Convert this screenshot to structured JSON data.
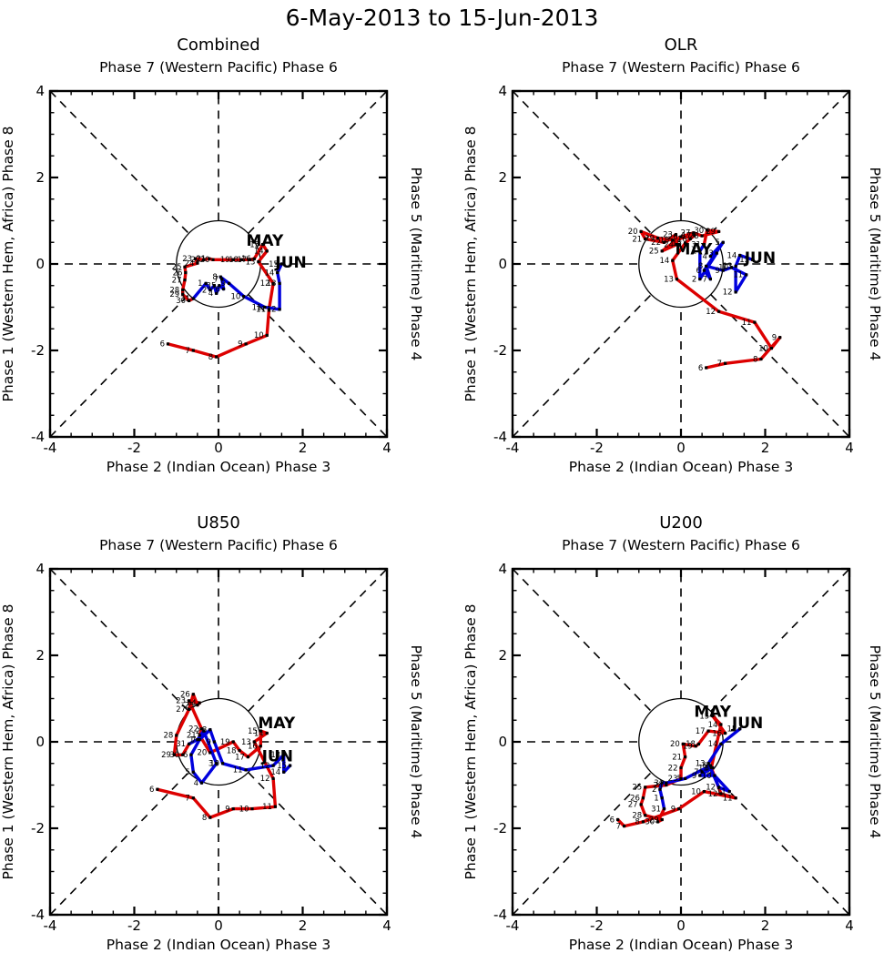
{
  "figure_title": "6-May-2013 to 15-Jun-2013",
  "colors": {
    "may": "#dd0000",
    "jun": "#0000dd",
    "axis": "#000000"
  },
  "axis": {
    "min": -4,
    "max": 4,
    "major_ticks": [
      -4,
      -2,
      0,
      2,
      4
    ],
    "tick_labels": [
      "-4",
      "-2",
      "0",
      "2",
      "4"
    ],
    "minor_step": 0.5,
    "unit_circle_radius": 1,
    "top_label": "Phase 7 (Western Pacific) Phase 6",
    "bottom_label": "Phase 2 (Indian Ocean) Phase 3",
    "left_label": "Phase 1 (Western Hem, Africa) Phase 8",
    "right_label": "Phase 5 (Maritime) Phase 4"
  },
  "chart_data": [
    {
      "type": "line",
      "title": "Combined",
      "xlim": [
        -4,
        4
      ],
      "ylim": [
        -4,
        4
      ],
      "grid": false,
      "series": [
        {
          "name": "MAY",
          "color": "#dd0000",
          "label_pos": [
            1.1,
            0.42
          ],
          "points": [
            [
              6,
              -1.2,
              -1.85
            ],
            [
              7,
              -0.6,
              -2.0
            ],
            [
              8,
              -0.05,
              -2.15
            ],
            [
              9,
              0.65,
              -1.85
            ],
            [
              10,
              1.15,
              -1.65
            ],
            [
              11,
              1.2,
              -1.05
            ],
            [
              12,
              1.3,
              -0.45
            ],
            [
              13,
              0.95,
              0.05
            ],
            [
              14,
              1.15,
              0.3
            ],
            [
              15,
              1.05,
              0.45
            ],
            [
              16,
              0.85,
              0.12
            ],
            [
              17,
              0.75,
              0.1
            ],
            [
              18,
              0.55,
              0.1
            ],
            [
              19,
              0.35,
              0.1
            ],
            [
              20,
              -0.13,
              0.1
            ],
            [
              21,
              -0.22,
              0.12
            ],
            [
              22,
              -0.35,
              0.1
            ],
            [
              23,
              -0.55,
              0.12
            ],
            [
              24,
              -0.5,
              0.02
            ],
            [
              25,
              -0.8,
              -0.07
            ],
            [
              26,
              -0.78,
              -0.2
            ],
            [
              27,
              -0.8,
              -0.37
            ],
            [
              28,
              -0.85,
              -0.6
            ],
            [
              29,
              -0.85,
              -0.7
            ],
            [
              30,
              -0.7,
              -0.85
            ],
            [
              31,
              -0.6,
              -0.8
            ]
          ]
        },
        {
          "name": "JUN",
          "color": "#0000dd",
          "label_pos": [
            1.72,
            -0.08
          ],
          "points": [
            [
              1,
              -0.3,
              -0.45
            ],
            [
              2,
              -0.2,
              -0.6
            ],
            [
              3,
              -0.1,
              -0.5
            ],
            [
              4,
              -0.05,
              -0.68
            ],
            [
              5,
              0.02,
              -0.5
            ],
            [
              6,
              0.12,
              -0.58
            ],
            [
              7,
              0.08,
              -0.35
            ],
            [
              8,
              0.05,
              -0.3
            ],
            [
              9,
              0.25,
              -0.45
            ],
            [
              10,
              0.6,
              -0.75
            ],
            [
              11,
              1.1,
              -1.0
            ],
            [
              12,
              1.45,
              -1.05
            ],
            [
              13,
              1.45,
              -0.45
            ],
            [
              14,
              1.4,
              -0.2
            ],
            [
              15,
              1.5,
              0.0
            ]
          ]
        }
      ]
    },
    {
      "type": "line",
      "title": "OLR",
      "xlim": [
        -4,
        4
      ],
      "ylim": [
        -4,
        4
      ],
      "grid": false,
      "series": [
        {
          "name": "MAY",
          "color": "#dd0000",
          "label_pos": [
            0.3,
            0.22
          ],
          "points": [
            [
              6,
              0.6,
              -2.4
            ],
            [
              7,
              1.05,
              -2.3
            ],
            [
              8,
              1.9,
              -2.2
            ],
            [
              9,
              2.35,
              -1.7
            ],
            [
              10,
              2.15,
              -1.95
            ],
            [
              11,
              1.75,
              -1.35
            ],
            [
              12,
              0.9,
              -1.1
            ],
            [
              13,
              -0.1,
              -0.35
            ],
            [
              14,
              -0.2,
              0.08
            ],
            [
              15,
              0.1,
              0.48
            ],
            [
              16,
              0.22,
              0.58
            ],
            [
              17,
              0.32,
              0.66
            ],
            [
              18,
              -0.2,
              0.55
            ],
            [
              19,
              -0.55,
              0.6
            ],
            [
              20,
              -0.95,
              0.75
            ],
            [
              21,
              -0.85,
              0.58
            ],
            [
              22,
              -0.4,
              0.5
            ],
            [
              23,
              -0.12,
              0.68
            ],
            [
              24,
              -0.1,
              0.45
            ],
            [
              25,
              -0.45,
              0.3
            ],
            [
              26,
              0.0,
              0.63
            ],
            [
              27,
              0.3,
              0.72
            ],
            [
              28,
              0.5,
              0.65
            ],
            [
              29,
              0.9,
              0.75
            ],
            [
              30,
              0.62,
              0.78
            ],
            [
              31,
              0.55,
              0.45
            ]
          ]
        },
        {
          "name": "JUN",
          "color": "#0000dd",
          "label_pos": [
            1.88,
            0.02
          ],
          "points": [
            [
              1,
              0.45,
              0.3
            ],
            [
              2,
              0.45,
              -0.35
            ],
            [
              3,
              0.85,
              0.25
            ],
            [
              4,
              0.7,
              0.18
            ],
            [
              5,
              1.0,
              0.5
            ],
            [
              6,
              0.55,
              -0.15
            ],
            [
              7,
              0.7,
              -0.35
            ],
            [
              8,
              0.6,
              -0.05
            ],
            [
              9,
              1.0,
              -0.15
            ],
            [
              10,
              1.2,
              -0.08
            ],
            [
              11,
              1.55,
              -0.25
            ],
            [
              12,
              1.3,
              -0.65
            ],
            [
              13,
              1.3,
              -0.05
            ],
            [
              14,
              1.4,
              0.2
            ],
            [
              15,
              1.7,
              0.1
            ]
          ]
        }
      ]
    },
    {
      "type": "line",
      "title": "U850",
      "xlim": [
        -4,
        4
      ],
      "ylim": [
        -4,
        4
      ],
      "grid": false,
      "series": [
        {
          "name": "MAY",
          "color": "#dd0000",
          "label_pos": [
            1.38,
            0.32
          ],
          "points": [
            [
              6,
              -1.45,
              -1.1
            ],
            [
              7,
              -0.6,
              -1.3
            ],
            [
              8,
              -0.2,
              -1.75
            ],
            [
              9,
              0.35,
              -1.55
            ],
            [
              10,
              0.8,
              -1.55
            ],
            [
              11,
              1.35,
              -1.5
            ],
            [
              12,
              1.3,
              -0.85
            ],
            [
              13,
              0.85,
              0.0
            ],
            [
              14,
              1.15,
              0.2
            ],
            [
              15,
              1.0,
              0.25
            ],
            [
              16,
              1.0,
              -0.1
            ],
            [
              17,
              0.7,
              -0.35
            ],
            [
              18,
              0.5,
              -0.2
            ],
            [
              19,
              0.35,
              0.0
            ],
            [
              20,
              -0.2,
              -0.25
            ],
            [
              21,
              -0.45,
              0.15
            ],
            [
              22,
              -0.4,
              0.3
            ],
            [
              23,
              -0.7,
              0.95
            ],
            [
              24,
              -0.45,
              0.9
            ],
            [
              25,
              -0.5,
              0.85
            ],
            [
              26,
              -0.6,
              1.1
            ],
            [
              27,
              -0.7,
              0.75
            ],
            [
              28,
              -1.0,
              0.15
            ],
            [
              29,
              -1.05,
              -0.3
            ],
            [
              30,
              -0.85,
              -0.3
            ],
            [
              31,
              -0.7,
              -0.05
            ]
          ]
        },
        {
          "name": "JUN",
          "color": "#0000dd",
          "label_pos": [
            1.4,
            -0.45
          ],
          "points": [
            [
              1,
              -0.5,
              0.05
            ],
            [
              2,
              -0.35,
              0.25
            ],
            [
              3,
              -0.05,
              -0.5
            ],
            [
              4,
              -0.4,
              -0.95
            ],
            [
              5,
              -0.6,
              -0.7
            ],
            [
              6,
              -0.65,
              -0.3
            ],
            [
              7,
              -0.45,
              0.05
            ],
            [
              8,
              -0.2,
              0.28
            ],
            [
              9,
              -0.1,
              0.0
            ],
            [
              10,
              0.1,
              -0.5
            ],
            [
              11,
              0.65,
              -0.65
            ],
            [
              12,
              1.3,
              -0.55
            ],
            [
              13,
              1.55,
              -0.3
            ],
            [
              14,
              1.55,
              -0.7
            ],
            [
              15,
              1.7,
              -0.55
            ]
          ]
        }
      ]
    },
    {
      "type": "line",
      "title": "U200",
      "xlim": [
        -4,
        4
      ],
      "ylim": [
        -4,
        4
      ],
      "grid": false,
      "series": [
        {
          "name": "MAY",
          "color": "#dd0000",
          "label_pos": [
            0.75,
            0.58
          ],
          "points": [
            [
              6,
              -1.5,
              -1.8
            ],
            [
              7,
              -1.35,
              -1.95
            ],
            [
              8,
              -0.9,
              -1.85
            ],
            [
              9,
              -0.05,
              -1.55
            ],
            [
              10,
              0.55,
              -1.15
            ],
            [
              11,
              1.3,
              -1.3
            ],
            [
              12,
              0.95,
              -1.2
            ],
            [
              13,
              0.72,
              -0.6
            ],
            [
              14,
              0.95,
              0.4
            ],
            [
              15,
              0.75,
              0.6
            ],
            [
              16,
              1.05,
              0.2
            ],
            [
              17,
              0.65,
              0.25
            ],
            [
              18,
              0.42,
              -0.05
            ],
            [
              19,
              0.35,
              -0.1
            ],
            [
              20,
              0.05,
              -0.05
            ],
            [
              21,
              0.1,
              -0.35
            ],
            [
              22,
              0.0,
              -0.6
            ],
            [
              23,
              0.0,
              -0.85
            ],
            [
              24,
              -0.35,
              -1.0
            ],
            [
              25,
              -0.85,
              -1.05
            ],
            [
              26,
              -0.9,
              -1.3
            ],
            [
              27,
              -0.95,
              -1.45
            ],
            [
              28,
              -0.85,
              -1.7
            ],
            [
              29,
              -0.45,
              -1.8
            ],
            [
              30,
              -0.55,
              -1.85
            ],
            [
              31,
              -0.4,
              -1.55
            ]
          ]
        },
        {
          "name": "JUN",
          "color": "#0000dd",
          "label_pos": [
            1.58,
            0.32
          ],
          "points": [
            [
              1,
              -0.45,
              -1.3
            ],
            [
              2,
              -0.5,
              -1.1
            ],
            [
              3,
              -0.45,
              -0.95
            ],
            [
              4,
              -0.35,
              -0.95
            ],
            [
              5,
              0.1,
              -0.85
            ],
            [
              6,
              0.7,
              -0.55
            ],
            [
              7,
              0.5,
              -0.7
            ],
            [
              8,
              0.75,
              -0.6
            ],
            [
              9,
              0.45,
              -0.78
            ],
            [
              10,
              0.8,
              -0.78
            ],
            [
              11,
              1.15,
              -1.15
            ],
            [
              12,
              0.9,
              -1.05
            ],
            [
              13,
              0.65,
              -0.5
            ],
            [
              14,
              0.95,
              -0.05
            ],
            [
              15,
              1.4,
              0.3
            ]
          ]
        }
      ]
    }
  ]
}
